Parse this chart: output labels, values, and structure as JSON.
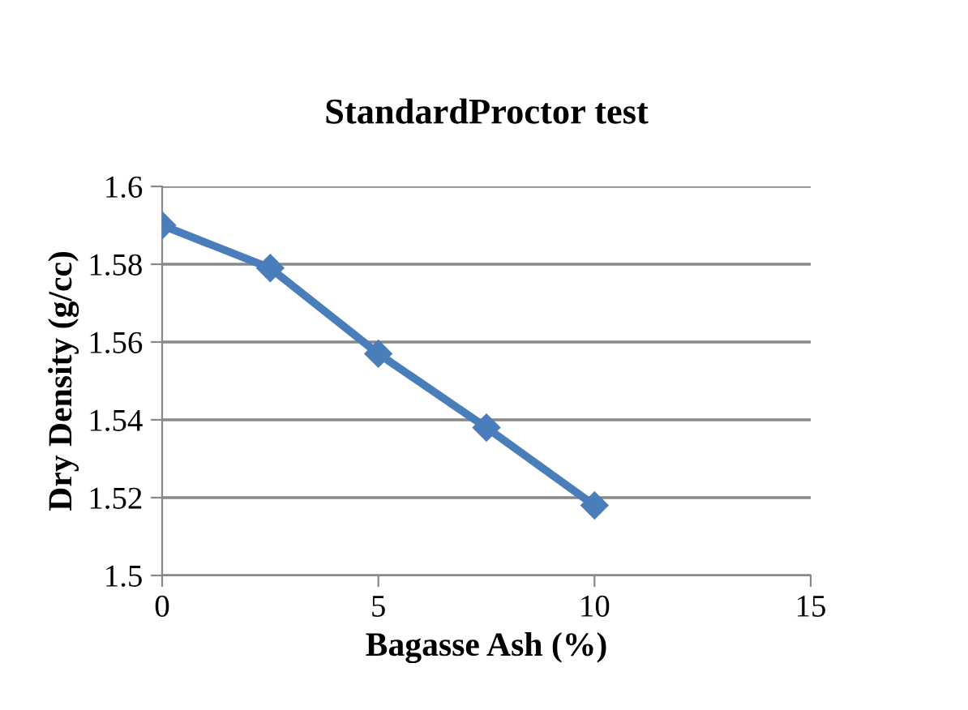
{
  "chart_data": {
    "type": "line",
    "title": "StandardProctor test",
    "xlabel": "Bagasse Ash (%)",
    "ylabel": "Dry Density (g/cc)",
    "x": [
      0,
      2.5,
      5,
      7.5,
      10
    ],
    "series": [
      {
        "color": "#4a7ebb",
        "values": [
          1.59,
          1.579,
          1.557,
          1.538,
          1.518
        ]
      }
    ],
    "xlim": [
      0,
      15
    ],
    "xticks": [
      0,
      5,
      10,
      15
    ],
    "ylim": [
      1.5,
      1.6
    ],
    "yticks": [
      1.5,
      1.52,
      1.54,
      1.56,
      1.58,
      1.6
    ],
    "grid": "y",
    "marker": "diamond",
    "line_style": "solid",
    "legend": false
  }
}
